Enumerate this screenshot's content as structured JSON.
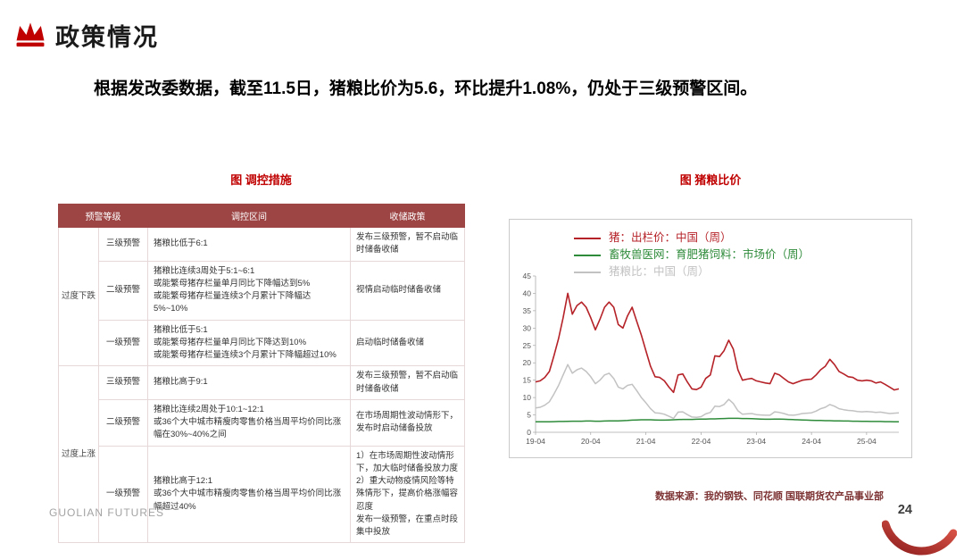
{
  "page": {
    "title": "政策情况",
    "subtitle": "根据发改委数据，截至11.5日，猪粮比价为5.6，环比提升1.08%，仍处于三级预警区间。",
    "brand": "GUOLIAN FUTURES",
    "page_number": "24",
    "source_note": "数据来源：我的钢铁、同花顺  国联期货农产品事业部"
  },
  "colors": {
    "accent_red": "#c00000",
    "table_header": "#9d4444",
    "pig_price_line": "#b52228",
    "feed_line": "#2e8b3a",
    "ratio_line": "#c2c2c2"
  },
  "table": {
    "caption": "图  调控措施",
    "headers": [
      "预警等级",
      "调控区间",
      "收储政策"
    ],
    "groups": [
      {
        "name": "过度下跌",
        "rows": [
          {
            "level": "三级预警",
            "range": "猪粮比低于6:1",
            "policy": "发布三级预警，暂不启动临时储备收储"
          },
          {
            "level": "二级预警",
            "range": "猪粮比连续3周处于5:1~6:1\n或能繁母猪存栏量单月同比下降幅达到5%\n或能繁母猪存栏量连续3个月累计下降幅达5%~10%",
            "policy": "视情启动临时储备收储"
          },
          {
            "level": "一级预警",
            "range": "猪粮比低于5:1\n或能繁母猪存栏量单月同比下降达到10%\n或能繁母猪存栏量连续3个月累计下降幅超过10%",
            "policy": "启动临时储备收储"
          }
        ]
      },
      {
        "name": "过度上涨",
        "rows": [
          {
            "level": "三级预警",
            "range": "猪粮比高于9:1",
            "policy": "发布三级预警，暂不启动临时储备收储"
          },
          {
            "level": "二级预警",
            "range": "猪粮比连续2周处于10:1~12:1\n或36个大中城市精瘦肉零售价格当周平均价同比涨幅在30%~40%之间",
            "policy": "在市场周期性波动情形下，发布时启动储备投放"
          },
          {
            "level": "一级预警",
            "range": "猪粮比高于12:1\n或36个大中城市精瘦肉零售价格当周平均价同比涨幅超过40%",
            "policy": "1）在市场周期性波动情形下，加大临时储备投放力度\n2）重大动物疫情风险等特殊情形下，提高价格涨幅容忍度\n发布一级预警，在重点时段集中投放"
          }
        ]
      }
    ]
  },
  "chart_data": {
    "type": "line",
    "caption": "图  猪粮比价",
    "legend_position": "top-left-inside",
    "grid": false,
    "ylim": [
      0,
      45
    ],
    "yticks": [
      0,
      5,
      10,
      15,
      20,
      25,
      30,
      35,
      40,
      45
    ],
    "x_ticks": [
      "19-04",
      "20-04",
      "21-04",
      "22-04",
      "23-04",
      "24-04",
      "25-04"
    ],
    "x": [
      "2019-04",
      "2019-05",
      "2019-06",
      "2019-07",
      "2019-08",
      "2019-09",
      "2019-10",
      "2019-11",
      "2019-12",
      "2020-01",
      "2020-02",
      "2020-03",
      "2020-04",
      "2020-05",
      "2020-06",
      "2020-07",
      "2020-08",
      "2020-09",
      "2020-10",
      "2020-11",
      "2020-12",
      "2021-01",
      "2021-02",
      "2021-03",
      "2021-04",
      "2021-05",
      "2021-06",
      "2021-07",
      "2021-08",
      "2021-09",
      "2021-10",
      "2021-11",
      "2021-12",
      "2022-01",
      "2022-02",
      "2022-03",
      "2022-04",
      "2022-05",
      "2022-06",
      "2022-07",
      "2022-08",
      "2022-09",
      "2022-10",
      "2022-11",
      "2022-12",
      "2023-01",
      "2023-02",
      "2023-03",
      "2023-04",
      "2023-05",
      "2023-06",
      "2023-07",
      "2023-08",
      "2023-09",
      "2023-10",
      "2023-11",
      "2023-12",
      "2024-01",
      "2024-02",
      "2024-03",
      "2024-04",
      "2024-05",
      "2024-06",
      "2024-07",
      "2024-08",
      "2024-09",
      "2024-10",
      "2024-11",
      "2024-12",
      "2025-01",
      "2025-02",
      "2025-03",
      "2025-04",
      "2025-05",
      "2025-06",
      "2025-07",
      "2025-08",
      "2025-09",
      "2025-10",
      "2025-11"
    ],
    "series": [
      {
        "name": "猪：出栏价：中国（周）",
        "color": "#b52228",
        "width": 1.6,
        "values": [
          14.5,
          14.8,
          15.8,
          17.5,
          22,
          27,
          33,
          40,
          34,
          36.5,
          37.5,
          36,
          33,
          29.5,
          32.5,
          36,
          37.5,
          36,
          31,
          30,
          33.5,
          36,
          32,
          28,
          23.5,
          19,
          16,
          15.8,
          14.8,
          13,
          11.5,
          16.5,
          16.8,
          14.5,
          12.5,
          12.3,
          13,
          15.5,
          16.5,
          22,
          21.8,
          23.5,
          26.5,
          24,
          18,
          15,
          15.3,
          15.5,
          14.8,
          14.5,
          14.2,
          14,
          17,
          16.5,
          15.5,
          14.5,
          14,
          14.5,
          15,
          15.2,
          15.3,
          16.5,
          18,
          19,
          21,
          19.5,
          17.5,
          16.8,
          16,
          15.8,
          15,
          14.8,
          15,
          14.8,
          14.2,
          14.5,
          13.8,
          13,
          12.2,
          12.5
        ]
      },
      {
        "name": "畜牧兽医网：育肥猪饲料：市场价（周）",
        "color": "#2e8b3a",
        "width": 1.5,
        "values": [
          3,
          3,
          3,
          3,
          3.05,
          3.1,
          3.1,
          3.15,
          3.2,
          3.2,
          3.2,
          3.25,
          3.25,
          3.2,
          3.2,
          3.25,
          3.3,
          3.3,
          3.3,
          3.35,
          3.4,
          3.5,
          3.55,
          3.6,
          3.6,
          3.6,
          3.55,
          3.5,
          3.5,
          3.55,
          3.6,
          3.65,
          3.7,
          3.7,
          3.7,
          3.75,
          3.8,
          3.8,
          3.85,
          3.85,
          3.9,
          3.95,
          4,
          4,
          4,
          3.95,
          3.95,
          3.9,
          3.85,
          3.8,
          3.75,
          3.75,
          3.8,
          3.8,
          3.75,
          3.7,
          3.65,
          3.6,
          3.55,
          3.5,
          3.45,
          3.4,
          3.4,
          3.35,
          3.35,
          3.3,
          3.3,
          3.25,
          3.25,
          3.2,
          3.2,
          3.15,
          3.15,
          3.1,
          3.1,
          3.1,
          3.05,
          3.05,
          3,
          3
        ]
      },
      {
        "name": "猪粮比：中国（周）",
        "color": "#c2c2c2",
        "width": 1.5,
        "values": [
          7,
          7.2,
          7.8,
          8.8,
          11,
          13.5,
          16.5,
          19.5,
          17,
          18,
          18.5,
          17.5,
          16,
          14,
          15,
          16.5,
          17,
          15.5,
          13,
          12.5,
          13.5,
          13.8,
          12,
          10,
          8.5,
          6.8,
          5.6,
          5.5,
          5.2,
          4.6,
          4,
          5.8,
          5.9,
          5.1,
          4.4,
          4.3,
          4.5,
          5.3,
          5.7,
          7.5,
          7.4,
          8,
          9.5,
          8.3,
          6.2,
          5.2,
          5.3,
          5.4,
          5.1,
          5,
          4.9,
          4.9,
          5.9,
          5.7,
          5.4,
          5,
          4.9,
          5.1,
          5.4,
          5.5,
          5.6,
          6.1,
          6.8,
          7.2,
          8,
          7.5,
          6.8,
          6.5,
          6.3,
          6.2,
          6,
          5.9,
          6,
          5.9,
          5.7,
          5.8,
          5.6,
          5.4,
          5.5,
          5.6
        ]
      }
    ]
  }
}
